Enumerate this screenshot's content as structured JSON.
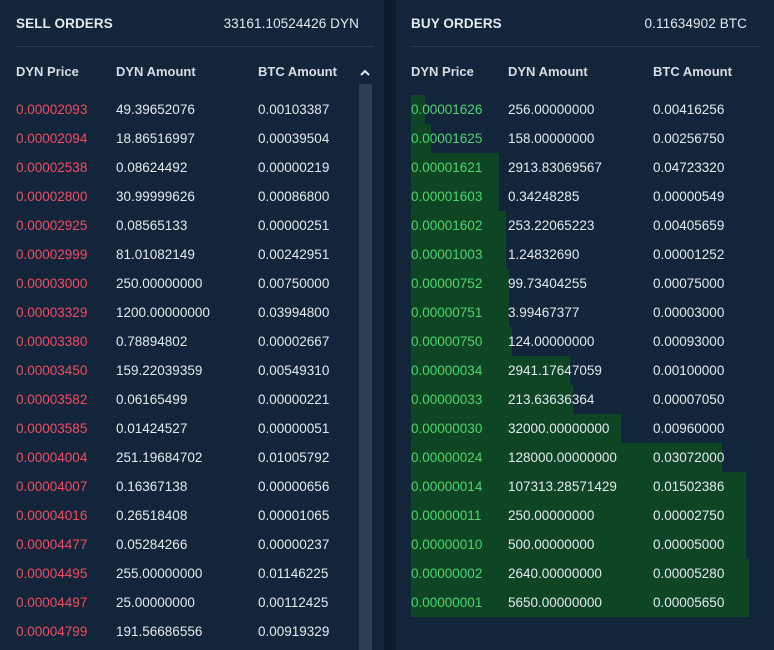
{
  "sell": {
    "title": "SELL ORDERS",
    "total": "33161.10524426 DYN",
    "headers": {
      "price": "DYN Price",
      "amount": "DYN Amount",
      "btc": "BTC Amount"
    },
    "scroll_up_icon": "chevron-up-icon",
    "price_color": "#ef4d63",
    "rows": [
      {
        "price": "0.00002093",
        "amount": "49.39652076",
        "btc": "0.00103387"
      },
      {
        "price": "0.00002094",
        "amount": "18.86516997",
        "btc": "0.00039504"
      },
      {
        "price": "0.00002538",
        "amount": "0.08624492",
        "btc": "0.00000219"
      },
      {
        "price": "0.00002800",
        "amount": "30.99999626",
        "btc": "0.00086800"
      },
      {
        "price": "0.00002925",
        "amount": "0.08565133",
        "btc": "0.00000251"
      },
      {
        "price": "0.00002999",
        "amount": "81.01082149",
        "btc": "0.00242951"
      },
      {
        "price": "0.00003000",
        "amount": "250.00000000",
        "btc": "0.00750000"
      },
      {
        "price": "0.00003329",
        "amount": "1200.00000000",
        "btc": "0.03994800"
      },
      {
        "price": "0.00003380",
        "amount": "0.78894802",
        "btc": "0.00002667"
      },
      {
        "price": "0.00003450",
        "amount": "159.22039359",
        "btc": "0.00549310"
      },
      {
        "price": "0.00003582",
        "amount": "0.06165499",
        "btc": "0.00000221"
      },
      {
        "price": "0.00003585",
        "amount": "0.01424527",
        "btc": "0.00000051"
      },
      {
        "price": "0.00004004",
        "amount": "251.19684702",
        "btc": "0.01005792"
      },
      {
        "price": "0.00004007",
        "amount": "0.16367138",
        "btc": "0.00000656"
      },
      {
        "price": "0.00004016",
        "amount": "0.26518408",
        "btc": "0.00001065"
      },
      {
        "price": "0.00004477",
        "amount": "0.05284266",
        "btc": "0.00000237"
      },
      {
        "price": "0.00004495",
        "amount": "255.00000000",
        "btc": "0.01146225"
      },
      {
        "price": "0.00004497",
        "amount": "25.00000000",
        "btc": "0.00112425"
      },
      {
        "price": "0.00004799",
        "amount": "191.56686556",
        "btc": "0.00919329"
      }
    ]
  },
  "buy": {
    "title": "BUY ORDERS",
    "total": "0.11634902 BTC",
    "headers": {
      "price": "DYN Price",
      "amount": "DYN Amount",
      "btc": "BTC Amount"
    },
    "price_color": "#4dd66e",
    "depth_color": "#0e4524",
    "rows": [
      {
        "price": "0.00001626",
        "amount": "256.00000000",
        "btc": "0.00416256",
        "depth": 0.04
      },
      {
        "price": "0.00001625",
        "amount": "158.00000000",
        "btc": "0.00256750",
        "depth": 0.06
      },
      {
        "price": "0.00001621",
        "amount": "2913.83069567",
        "btc": "0.04723320",
        "depth": 0.26
      },
      {
        "price": "0.00001603",
        "amount": "0.34248285",
        "btc": "0.00000549",
        "depth": 0.26
      },
      {
        "price": "0.00001602",
        "amount": "253.22065223",
        "btc": "0.00405659",
        "depth": 0.28
      },
      {
        "price": "0.00001003",
        "amount": "1.24832690",
        "btc": "0.00001252",
        "depth": 0.28
      },
      {
        "price": "0.00000752",
        "amount": "99.73404255",
        "btc": "0.00075000",
        "depth": 0.29
      },
      {
        "price": "0.00000751",
        "amount": "3.99467377",
        "btc": "0.00003000",
        "depth": 0.29
      },
      {
        "price": "0.00000750",
        "amount": "124.00000000",
        "btc": "0.00093000",
        "depth": 0.3
      },
      {
        "price": "0.00000034",
        "amount": "2941.17647059",
        "btc": "0.00100000",
        "depth": 0.47
      },
      {
        "price": "0.00000033",
        "amount": "213.63636364",
        "btc": "0.00007050",
        "depth": 0.48
      },
      {
        "price": "0.00000030",
        "amount": "32000.00000000",
        "btc": "0.00960000",
        "depth": 0.62
      },
      {
        "price": "0.00000024",
        "amount": "128000.00000000",
        "btc": "0.03072000",
        "depth": 0.92
      },
      {
        "price": "0.00000014",
        "amount": "107313.28571429",
        "btc": "0.01502386",
        "depth": 0.99
      },
      {
        "price": "0.00000011",
        "amount": "250.00000000",
        "btc": "0.00002750",
        "depth": 0.99
      },
      {
        "price": "0.00000010",
        "amount": "500.00000000",
        "btc": "0.00005000",
        "depth": 0.99
      },
      {
        "price": "0.00000002",
        "amount": "2640.00000000",
        "btc": "0.00005280",
        "depth": 1.0
      },
      {
        "price": "0.00000001",
        "amount": "5650.00000000",
        "btc": "0.00005650",
        "depth": 1.0
      }
    ]
  }
}
